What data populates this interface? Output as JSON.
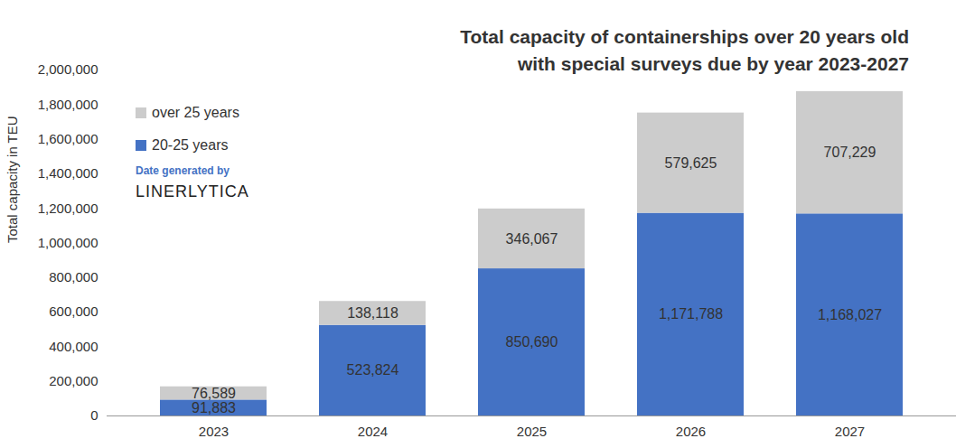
{
  "chart_data": {
    "type": "bar",
    "stacked": true,
    "data_labels": true,
    "grid": false,
    "legend": "top-left",
    "title": "Total capacity of containerships over 20 years old\nwith special surveys due by year 2023-2027",
    "ylabel": "Total capacity in TEU",
    "annotations": [
      "Date generated by",
      "LINERLYTICA"
    ],
    "categories": [
      "2023",
      "2024",
      "2025",
      "2026",
      "2027"
    ],
    "series": [
      {
        "name": "20-25 years",
        "color": "#4472c4",
        "values": [
          91883,
          523824,
          850690,
          1171788,
          1168027
        ],
        "value_labels": [
          "91,883",
          "523,824",
          "850,690",
          "1,171,788",
          "1,168,027"
        ]
      },
      {
        "name": "over 25 years",
        "color": "#cccccc",
        "values": [
          76589,
          138118,
          346067,
          579625,
          707229
        ],
        "value_labels": [
          "76,589",
          "138,118",
          "346,067",
          "579,625",
          "707,229"
        ]
      }
    ],
    "ylim": [
      0,
      2000000
    ],
    "yticks": [
      0,
      {
        "value": 200000,
        "label": "200,000"
      },
      {
        "value": 400000,
        "label": "400,000"
      },
      {
        "value": 600000,
        "label": "600,000"
      },
      {
        "value": 800000,
        "label": "800,000"
      },
      {
        "value": 1000000,
        "label": "1,000,000"
      },
      {
        "value": 1200000,
        "label": "1,200,000"
      },
      {
        "value": 1400000,
        "label": "1,400,000"
      },
      {
        "value": 1600000,
        "label": "1,600,000"
      },
      {
        "value": 1800000,
        "label": "1,800,000"
      },
      {
        "value": 2000000,
        "label": "2,000,000"
      }
    ]
  }
}
